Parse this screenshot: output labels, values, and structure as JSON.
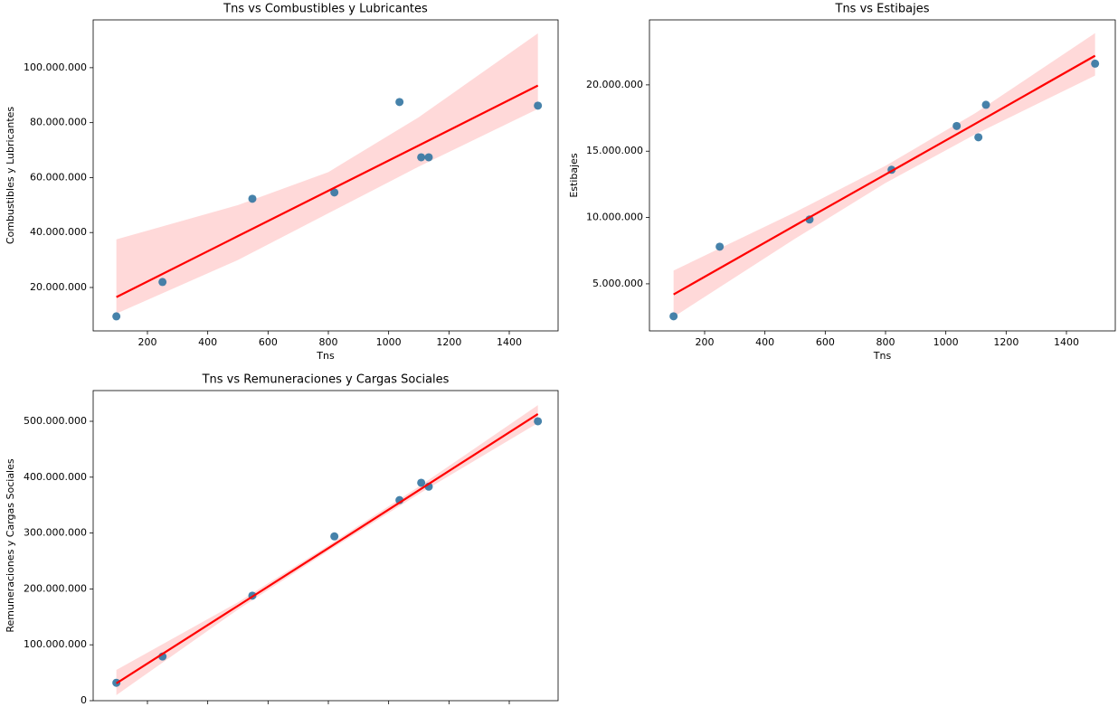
{
  "chart_data": [
    {
      "type": "scatter",
      "title": "Tns vs Combustibles y Lubricantes",
      "xlabel": "Tns",
      "ylabel": "Combustibles y Lubricantes",
      "x": [
        97,
        250,
        548,
        820,
        1036,
        1108,
        1133,
        1495
      ],
      "values": [
        9500000,
        22000000,
        52300000,
        54600000,
        87500000,
        67400000,
        67400000,
        86200000
      ],
      "color": "#3274a1",
      "fit": {
        "x": [
          97,
          500,
          800,
          1100,
          1495
        ],
        "values": [
          16500000,
          38700000,
          55200000,
          71700000,
          93500000
        ],
        "upper": [
          37500000,
          50000000,
          62000000,
          82000000,
          112500000
        ],
        "lower": [
          10500000,
          30000000,
          47000000,
          64000000,
          85000000
        ],
        "color": "#ff0000"
      },
      "xlim": [
        20,
        1562
      ],
      "ylim": [
        4200000,
        117400000
      ],
      "xticks": [
        200,
        400,
        600,
        800,
        1000,
        1200,
        1400
      ],
      "yticks": [
        {
          "value": 20000000,
          "label": "20.000.000"
        },
        {
          "value": 40000000,
          "label": "40.000.000"
        },
        {
          "value": 60000000,
          "label": "60.000.000"
        },
        {
          "value": 80000000,
          "label": "80.000.000"
        },
        {
          "value": 100000000,
          "label": "100.000.000"
        }
      ]
    },
    {
      "type": "scatter",
      "title": "Tns vs Estibajes",
      "xlabel": "Tns",
      "ylabel": "Estibajes",
      "x": [
        97,
        250,
        548,
        820,
        1036,
        1108,
        1133,
        1495
      ],
      "values": [
        2550000,
        7800000,
        9850000,
        13600000,
        16900000,
        16050000,
        18500000,
        21600000
      ],
      "color": "#3274a1",
      "fit": {
        "x": [
          97,
          500,
          800,
          1100,
          1495
        ],
        "values": [
          4200000,
          9400000,
          13250000,
          17100000,
          22200000
        ],
        "upper": [
          6000000,
          10400000,
          13900000,
          17900000,
          23900000
        ],
        "lower": [
          2500000,
          8400000,
          12600000,
          16300000,
          20700000
        ],
        "color": "#ff0000"
      },
      "xlim": [
        17,
        1562
      ],
      "ylim": [
        1450000,
        24900000
      ],
      "xticks": [
        200,
        400,
        600,
        800,
        1000,
        1200,
        1400
      ],
      "yticks": [
        {
          "value": 5000000,
          "label": "5.000.000"
        },
        {
          "value": 10000000,
          "label": "10.000.000"
        },
        {
          "value": 15000000,
          "label": "15.000.000"
        },
        {
          "value": 20000000,
          "label": "20.000.000"
        }
      ]
    },
    {
      "type": "scatter",
      "title": "Tns vs Remuneraciones y Cargas Sociales",
      "ylabel": "Remuneraciones y Cargas Sociales",
      "x": [
        97,
        250,
        548,
        820,
        1036,
        1108,
        1133,
        1495
      ],
      "values": [
        32000000,
        79000000,
        188000000,
        294000000,
        359000000,
        390000000,
        383000000,
        500000000
      ],
      "color": "#3274a1",
      "fit": {
        "x": [
          97,
          500,
          800,
          1100,
          1495
        ],
        "values": [
          31000000,
          169700000,
          273000000,
          376500000,
          513000000
        ],
        "upper": [
          55000000,
          176000000,
          278000000,
          383000000,
          529000000
        ],
        "lower": [
          10000000,
          163000000,
          268000000,
          370000000,
          497000000
        ],
        "color": "#ff0000"
      },
      "xlim": [
        20,
        1562
      ],
      "ylim": [
        0,
        555000000
      ],
      "xticks": [
        200,
        400,
        600,
        800,
        1000,
        1200,
        1400
      ],
      "xtick_labels": false,
      "yticks": [
        0,
        {
          "value": 100000000,
          "label": "100.000.000"
        },
        {
          "value": 200000000,
          "label": "200.000.000"
        },
        {
          "value": 300000000,
          "label": "300.000.000"
        },
        {
          "value": 400000000,
          "label": "400.000.000"
        },
        {
          "value": 500000000,
          "label": "500.000.000"
        }
      ]
    }
  ]
}
